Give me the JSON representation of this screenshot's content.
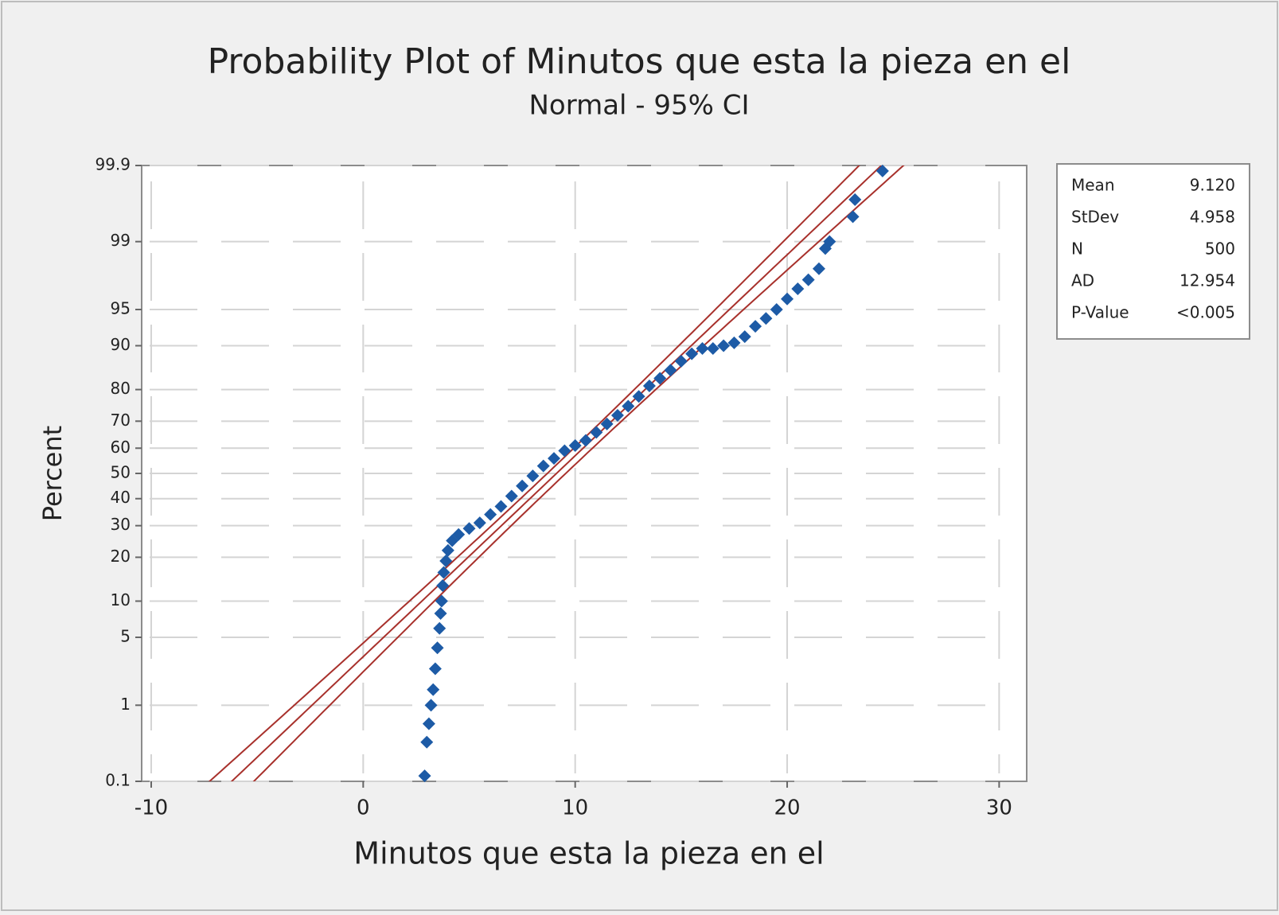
{
  "chart_data": {
    "type": "probability",
    "title": "Probability Plot of Minutos que esta la pieza en el",
    "subtitle": "Normal - 95% CI",
    "x_label": "Minutos que esta la pieza en el",
    "y_label": "Percent",
    "xlim": [
      -10.45,
      31.3
    ],
    "xticks": [
      -10,
      0,
      10,
      20,
      30
    ],
    "ylim": [
      0.1,
      99.9
    ],
    "yticks": [
      0.1,
      1,
      5,
      10,
      20,
      30,
      40,
      50,
      60,
      70,
      80,
      90,
      95,
      99,
      99.9
    ],
    "y_scale": "normal",
    "grid": true,
    "color": "#1d5ba6",
    "fit_color": "#a8312c",
    "x": [
      2.9,
      3.0,
      3.1,
      3.2,
      3.3,
      3.4,
      3.5,
      3.6,
      3.65,
      3.7,
      3.75,
      3.8,
      3.9,
      4.0,
      4.2,
      4.5,
      5,
      5.5,
      6,
      6.5,
      7,
      7.5,
      8,
      8.5,
      9,
      9.5,
      10,
      10.5,
      11,
      11.5,
      12,
      12.5,
      13,
      13.5,
      14,
      14.5,
      15,
      15.5,
      16,
      16.5,
      17,
      17.5,
      18,
      18.5,
      19,
      19.5,
      20,
      20.5,
      21,
      21.5,
      21.8,
      22,
      23.1,
      23.2,
      24.5
    ],
    "values": [
      0.12,
      0.35,
      0.6,
      1,
      1.5,
      2.5,
      4,
      6,
      8,
      10,
      13,
      16,
      19,
      22,
      25,
      27,
      29,
      31,
      34,
      37,
      41,
      45,
      49,
      53,
      56,
      59,
      61,
      63,
      66,
      69,
      72,
      75,
      78,
      81,
      83,
      85,
      87,
      88.5,
      89.5,
      89.5,
      90,
      90.5,
      91.5,
      93,
      94,
      95,
      96,
      96.8,
      97.4,
      98,
      98.8,
      99,
      99.5,
      99.7,
      99.88
    ],
    "stats": {
      "labels": [
        "Mean",
        "StDev",
        "N",
        "AD",
        "P-Value"
      ],
      "values": [
        9.12,
        4.958,
        500,
        12.954,
        null
      ],
      "value_labels": [
        "9.120",
        "4.958",
        "500",
        "12.954",
        "<0.005"
      ]
    }
  }
}
